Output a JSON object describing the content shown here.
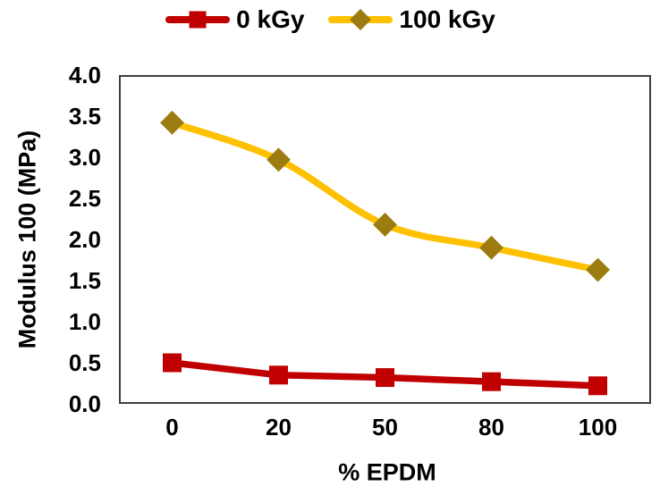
{
  "chart_data": {
    "type": "line",
    "title": "",
    "xlabel": "% EPDM",
    "ylabel": "Modulus 100 (MPa)",
    "x_axis_type": "categorical",
    "categories": [
      "0",
      "20",
      "50",
      "80",
      "100"
    ],
    "series": [
      {
        "name": "0 kGy",
        "values": [
          0.5,
          0.35,
          0.32,
          0.27,
          0.22
        ],
        "line_color": "#C00000",
        "marker": "square",
        "marker_color": "#C00000",
        "smooth": false
      },
      {
        "name": "100 kGy",
        "values": [
          3.42,
          2.97,
          2.18,
          1.9,
          1.63
        ],
        "line_color": "#FFC000",
        "marker": "diamond",
        "marker_color": "#9C7C10",
        "smooth": true
      }
    ],
    "ylim": [
      0.0,
      4.0
    ],
    "ytick_step": 0.5,
    "yticks": [
      "4.0",
      "3.5",
      "3.0",
      "2.5",
      "2.0",
      "1.5",
      "1.0",
      "0.5",
      "0.0"
    ],
    "xticks": [
      "0",
      "20",
      "50",
      "80",
      "100"
    ],
    "grid": false,
    "legend_position": "top",
    "plot_border_color": "#3F3F3F",
    "text_color": "#000000",
    "background": "#FFFFFF"
  }
}
